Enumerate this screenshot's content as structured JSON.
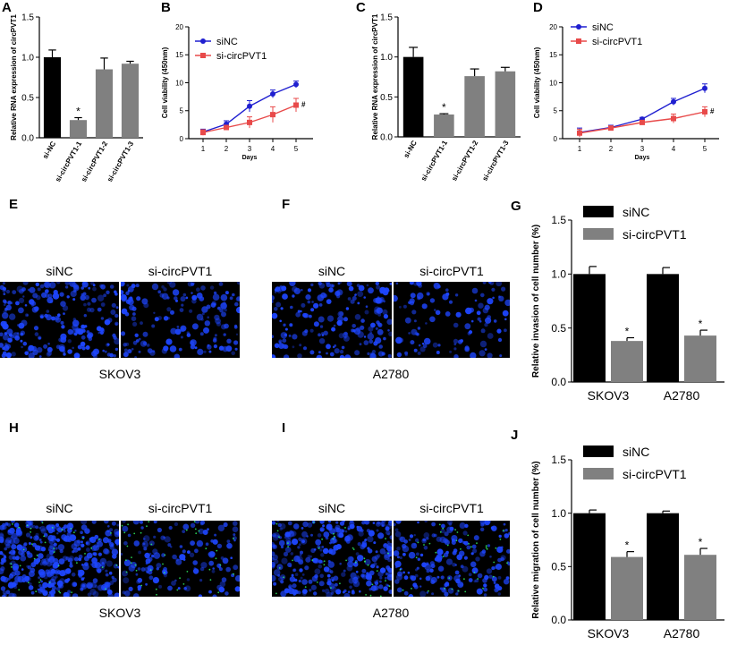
{
  "panels": {
    "A": "A",
    "B": "B",
    "C": "C",
    "D": "D",
    "E": "E",
    "F": "F",
    "G": "G",
    "H": "H",
    "I": "I",
    "J": "J"
  },
  "micrographs": [
    {
      "letter_key": "E",
      "left_label": "siNC",
      "right_label": "si-circPVT1",
      "cell_line": "SKOV3"
    },
    {
      "letter_key": "F",
      "left_label": "siNC",
      "right_label": "si-circPVT1",
      "cell_line": "A2780"
    },
    {
      "letter_key": "H",
      "left_label": "siNC",
      "right_label": "si-circPVT1",
      "cell_line": "SKOV3"
    },
    {
      "letter_key": "I",
      "left_label": "siNC",
      "right_label": "si-circPVT1",
      "cell_line": "A2780"
    }
  ],
  "colors": {
    "black_bar": "#000000",
    "grey_bar": "#808080",
    "siNC_line": "#1f1fd0",
    "si_line": "#e84a4a",
    "stain": "#1e46ff"
  },
  "chart_data": [
    {
      "id": "A",
      "type": "bar",
      "title": "",
      "xlabel": "",
      "ylabel": "Relative RNA expression of circPVT1",
      "ylim": [
        0,
        1.5
      ],
      "yticks": [
        "0.0",
        "0.5",
        "1.0",
        "1.5"
      ],
      "yticks_values": [
        0,
        0.5,
        1.0,
        1.5
      ],
      "categories": [
        "si-NC",
        "si-circPVT1-1",
        "si-circPVT1-2",
        "si-circPVT1-3"
      ],
      "values": [
        1.0,
        0.22,
        0.85,
        0.92
      ],
      "errors": [
        0.09,
        0.03,
        0.14,
        0.03
      ],
      "colors": [
        "#000000",
        "#808080",
        "#808080",
        "#808080"
      ],
      "annotations": [
        "",
        "*",
        "",
        ""
      ]
    },
    {
      "id": "B",
      "type": "line",
      "xlabel": "Days",
      "ylabel": "Cell viability (450nm)",
      "x": [
        1,
        2,
        3,
        4,
        5
      ],
      "xticks": [
        "1",
        "2",
        "3",
        "4",
        "5"
      ],
      "ylim": [
        0,
        20
      ],
      "yticks": [
        "0",
        "5",
        "10",
        "15",
        "20"
      ],
      "yticks_values": [
        0,
        5,
        10,
        15,
        20
      ],
      "series": [
        {
          "name": "siNC",
          "values": [
            1.2,
            2.6,
            5.8,
            8.0,
            9.7
          ],
          "errors": [
            0.5,
            0.6,
            1.0,
            0.7,
            0.6
          ],
          "color": "#1f1fd0",
          "marker": "circle"
        },
        {
          "name": "si-circPVT1",
          "values": [
            1.1,
            2.0,
            2.9,
            4.3,
            6.0
          ],
          "errors": [
            0.5,
            0.4,
            1.0,
            1.4,
            1.2
          ],
          "color": "#e84a4a",
          "marker": "square"
        }
      ],
      "annotation": "#"
    },
    {
      "id": "C",
      "type": "bar",
      "title": "",
      "xlabel": "",
      "ylabel": "Relative RNA expression of circPVT1",
      "ylim": [
        0,
        1.5
      ],
      "yticks": [
        "0.0",
        "0.5",
        "1.0",
        "1.5"
      ],
      "yticks_values": [
        0,
        0.5,
        1.0,
        1.5
      ],
      "categories": [
        "si-NC",
        "si-circPVT1-1",
        "si-circPVT1-2",
        "si-circPVT1-3"
      ],
      "values": [
        1.0,
        0.28,
        0.76,
        0.82
      ],
      "errors": [
        0.12,
        0.01,
        0.09,
        0.05
      ],
      "colors": [
        "#000000",
        "#808080",
        "#808080",
        "#808080"
      ],
      "annotations": [
        "",
        "*",
        "",
        ""
      ]
    },
    {
      "id": "D",
      "type": "line",
      "xlabel": "Days",
      "ylabel": "Cell viability (450nm)",
      "x": [
        1,
        2,
        3,
        4,
        5
      ],
      "xticks": [
        "1",
        "2",
        "3",
        "4",
        "5"
      ],
      "ylim": [
        0,
        20
      ],
      "yticks": [
        "0",
        "5",
        "10",
        "15",
        "20"
      ],
      "yticks_values": [
        0,
        5,
        10,
        15,
        20
      ],
      "series": [
        {
          "name": "siNC",
          "values": [
            1.1,
            2.0,
            3.5,
            6.6,
            9.0
          ],
          "errors": [
            0.8,
            0.4,
            0.3,
            0.6,
            0.8
          ],
          "color": "#1f1fd0",
          "marker": "circle"
        },
        {
          "name": "si-circPVT1",
          "values": [
            1.0,
            1.9,
            2.9,
            3.6,
            4.8
          ],
          "errors": [
            0.7,
            0.3,
            0.3,
            0.8,
            0.9
          ],
          "color": "#e84a4a",
          "marker": "square"
        }
      ],
      "annotation": "#"
    },
    {
      "id": "G",
      "type": "bar",
      "xlabel": "",
      "ylabel": "Relative invasion of cell number (%)",
      "ylim": [
        0,
        1.5
      ],
      "yticks": [
        "0.0",
        "0.5",
        "1.0",
        "1.5"
      ],
      "yticks_values": [
        0,
        0.5,
        1.0,
        1.5
      ],
      "categories": [
        "SKOV3",
        "A2780"
      ],
      "series": [
        {
          "name": "siNC",
          "values": [
            1.0,
            1.0
          ],
          "errors": [
            0.07,
            0.06
          ],
          "color": "#000000"
        },
        {
          "name": "si-circPVT1",
          "values": [
            0.38,
            0.43
          ],
          "errors": [
            0.03,
            0.05
          ],
          "color": "#808080"
        }
      ],
      "annotations": [
        "*",
        "*"
      ]
    },
    {
      "id": "J",
      "type": "bar",
      "xlabel": "",
      "ylabel": "Relative migration of cell number (%)",
      "ylim": [
        0,
        1.5
      ],
      "yticks": [
        "0.0",
        "0.5",
        "1.0",
        "1.5"
      ],
      "yticks_values": [
        0,
        0.5,
        1.0,
        1.5
      ],
      "categories": [
        "SKOV3",
        "A2780"
      ],
      "series": [
        {
          "name": "siNC",
          "values": [
            1.0,
            1.0
          ],
          "errors": [
            0.03,
            0.02
          ],
          "color": "#000000"
        },
        {
          "name": "si-circPVT1",
          "values": [
            0.59,
            0.61
          ],
          "errors": [
            0.05,
            0.06
          ],
          "color": "#808080"
        }
      ],
      "annotations": [
        "*",
        "*"
      ]
    }
  ]
}
